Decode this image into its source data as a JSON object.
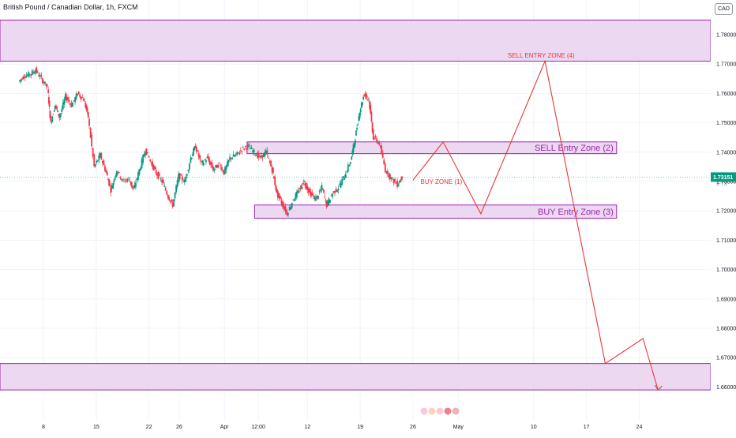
{
  "header": {
    "title": "British Pound / Canadian Dollar, 1h, FXCM",
    "currency_badge": "CAD"
  },
  "colors": {
    "up": "#089981",
    "down": "#f23645",
    "zone_fill": "#ead1f0",
    "zone_stroke": "#9c27b0",
    "path": "#e53935",
    "price_badge": "#089981",
    "grid": "#f0f3fa"
  },
  "chart_data": {
    "type": "candlestick",
    "symbol": "GBP/CAD",
    "timeframe": "1h",
    "y_axis": {
      "range": [
        1.655,
        1.786
      ],
      "ticks": [
        1.78,
        1.77,
        1.76,
        1.75,
        1.74,
        1.73,
        1.72,
        1.71,
        1.7,
        1.69,
        1.68,
        1.67,
        1.66
      ],
      "tick_labels": [
        "1.78000",
        "1.77000",
        "1.76000",
        "1.75000",
        "1.74000",
        "1.73000",
        "1.72000",
        "1.71000",
        "1.70000",
        "1.69000",
        "1.68000",
        "1.67000",
        "1.66000"
      ]
    },
    "x_axis": {
      "labels": [
        "8",
        "15",
        "22",
        "26",
        "Apr",
        "12:00",
        "12",
        "19",
        "26",
        "May",
        "10",
        "17",
        "24"
      ],
      "label_day_index": [
        8,
        15,
        22,
        26,
        32,
        36.5,
        43,
        50,
        57,
        63,
        73,
        80,
        87
      ]
    },
    "current_price": 1.73151,
    "current_price_label": "1.73151",
    "current_price_sub_label": "1.73",
    "candles_close_path": [
      [
        4.8,
        1.764
      ],
      [
        5.5,
        1.766
      ],
      [
        6.3,
        1.7665
      ],
      [
        7.0,
        1.768
      ],
      [
        7.8,
        1.765
      ],
      [
        8.6,
        1.762
      ],
      [
        9.0,
        1.75
      ],
      [
        9.6,
        1.756
      ],
      [
        10.2,
        1.752
      ],
      [
        11.0,
        1.759
      ],
      [
        11.8,
        1.756
      ],
      [
        12.6,
        1.76
      ],
      [
        13.4,
        1.758
      ],
      [
        14.0,
        1.752
      ],
      [
        14.8,
        1.735
      ],
      [
        15.6,
        1.739
      ],
      [
        16.4,
        1.733
      ],
      [
        17.0,
        1.727
      ],
      [
        17.8,
        1.734
      ],
      [
        18.6,
        1.73
      ],
      [
        19.4,
        1.731
      ],
      [
        20.0,
        1.727
      ],
      [
        20.8,
        1.734
      ],
      [
        21.6,
        1.741
      ],
      [
        22.4,
        1.736
      ],
      [
        23.0,
        1.733
      ],
      [
        23.8,
        1.73
      ],
      [
        24.6,
        1.725
      ],
      [
        25.2,
        1.722
      ],
      [
        26.0,
        1.732
      ],
      [
        26.8,
        1.73
      ],
      [
        27.6,
        1.738
      ],
      [
        28.2,
        1.742
      ],
      [
        29.0,
        1.736
      ],
      [
        29.8,
        1.738
      ],
      [
        30.6,
        1.734
      ],
      [
        31.4,
        1.736
      ],
      [
        32.0,
        1.733
      ],
      [
        32.8,
        1.738
      ],
      [
        33.6,
        1.739
      ],
      [
        34.4,
        1.741
      ],
      [
        35.2,
        1.742
      ],
      [
        36.0,
        1.74
      ],
      [
        36.8,
        1.738
      ],
      [
        37.6,
        1.74
      ],
      [
        38.4,
        1.734
      ],
      [
        39.0,
        1.726
      ],
      [
        39.8,
        1.722
      ],
      [
        40.4,
        1.719
      ],
      [
        41.2,
        1.724
      ],
      [
        42.0,
        1.727
      ],
      [
        42.6,
        1.73
      ],
      [
        43.4,
        1.726
      ],
      [
        44.2,
        1.724
      ],
      [
        45.0,
        1.728
      ],
      [
        45.6,
        1.722
      ],
      [
        46.4,
        1.726
      ],
      [
        47.2,
        1.728
      ],
      [
        48.0,
        1.732
      ],
      [
        48.8,
        1.737
      ],
      [
        49.4,
        1.745
      ],
      [
        50.0,
        1.754
      ],
      [
        50.6,
        1.76
      ],
      [
        51.2,
        1.758
      ],
      [
        51.8,
        1.745
      ],
      [
        52.6,
        1.743
      ],
      [
        53.4,
        1.734
      ],
      [
        54.2,
        1.731
      ],
      [
        55.0,
        1.729
      ],
      [
        55.6,
        1.7315
      ]
    ],
    "zones": [
      {
        "name": "top-zone",
        "from": 1.771,
        "to": 1.785,
        "label": ""
      },
      {
        "name": "sell-entry-zone-2",
        "from": 1.7395,
        "to": 1.7435,
        "label": "SELL Entry Zone (2)"
      },
      {
        "name": "buy-entry-zone-3",
        "from": 1.7175,
        "to": 1.722,
        "label": "BUY Entry Zone (3)"
      },
      {
        "name": "bottom-zone",
        "from": 1.659,
        "to": 1.668,
        "label": ""
      }
    ],
    "projection_path": [
      [
        57.0,
        1.7305
      ],
      [
        61.0,
        1.7435
      ],
      [
        66.0,
        1.719
      ],
      [
        74.5,
        1.771
      ],
      [
        82.5,
        1.668
      ],
      [
        87.5,
        1.6765
      ],
      [
        89.5,
        1.659
      ]
    ],
    "annotations": [
      {
        "text": "BUY ZONE (1)",
        "at": [
          58.0,
          1.73
        ]
      },
      {
        "text": "SELL ENTRY ZONE (4)",
        "at": [
          74.0,
          1.773
        ]
      }
    ]
  }
}
